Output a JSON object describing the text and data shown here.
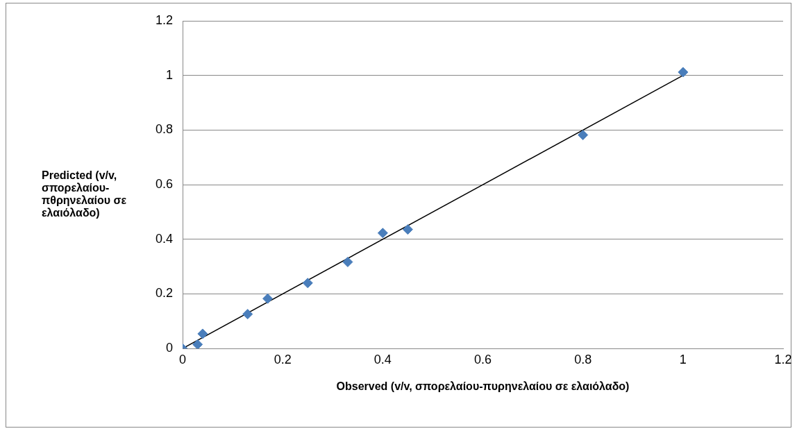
{
  "chart_data": {
    "type": "scatter",
    "xlabel": "Observed (v/v, σπορελαίου-πυρηνελαίου σε ελαιόλαδο)",
    "ylabel": "Predicted (v/v, σπορελαίου-πθρηνελαίου σε ελαιόλαδο)",
    "xlim": [
      0,
      1.2
    ],
    "xticks": [
      0,
      0.2,
      0.4,
      0.6,
      0.8,
      1,
      1.2
    ],
    "ylim": [
      0,
      1.2
    ],
    "yticks": [
      0,
      0.2,
      0.4,
      0.6,
      0.8,
      1,
      1.2
    ],
    "grid": "y",
    "legend": false,
    "marker": "diamond",
    "series": [
      {
        "color": "#4a7ebb",
        "x": [
          0,
          0.03,
          0.04,
          0.13,
          0.17,
          0.25,
          0.33,
          0.4,
          0.45,
          0.8,
          1
        ],
        "values": [
          0,
          0.015,
          0.054,
          0.126,
          0.183,
          0.24,
          0.317,
          0.423,
          0.436,
          0.782,
          1.012
        ]
      },
      {
        "type": "line",
        "color": "#000000",
        "marker": "none",
        "x": [
          0,
          1
        ],
        "values": [
          0,
          1
        ]
      }
    ]
  }
}
